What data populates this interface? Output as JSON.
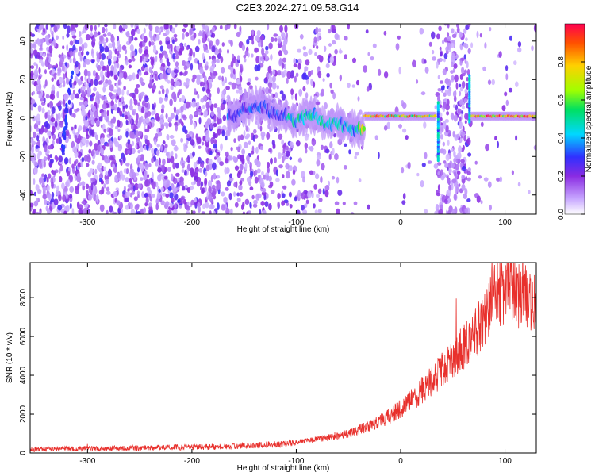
{
  "title": "C2E3.2024.271.09.58.G14",
  "colors": {
    "snr_line": "#e8302c",
    "axes": "#000000",
    "background": "#ffffff"
  },
  "chart_data": [
    {
      "type": "heatmap",
      "name": "spectrogram",
      "xlabel": "Height of straight line (km)",
      "ylabel": "Frequency (Hz)",
      "xlim": [
        -355,
        130
      ],
      "ylim": [
        -50,
        49
      ],
      "x_ticks": [
        -300,
        -200,
        -100,
        0,
        100
      ],
      "y_ticks": [
        -40,
        -20,
        0,
        20,
        40
      ],
      "colorbar": {
        "label": "Normalized spectral amplitude",
        "range": [
          0,
          1
        ],
        "ticks": [
          0.0,
          0.2,
          0.4,
          0.6,
          0.8
        ],
        "colormap": [
          "#ffffff",
          "#c8a8ff",
          "#8a2be2",
          "#3030ff",
          "#00d8ff",
          "#00e060",
          "#a0ff00",
          "#ffd000",
          "#ff5000",
          "#ff0050"
        ]
      },
      "features": {
        "signal_band_center_hz": 1,
        "noise_region_km": [
          -355,
          -110
        ],
        "noise_gap_km": [
          35,
          66
        ],
        "signal_start_km": -165
      }
    },
    {
      "type": "line",
      "name": "snr",
      "xlabel": "Height of straight line (km)",
      "ylabel": "SNR (10 * v/v)",
      "xlim": [
        -355,
        130
      ],
      "ylim": [
        0,
        9800
      ],
      "x_ticks": [
        -300,
        -200,
        -100,
        0,
        100
      ],
      "y_ticks": [
        0,
        2000,
        4000,
        6000,
        8000
      ],
      "envelope": {
        "x": [
          -355,
          -300,
          -250,
          -200,
          -150,
          -110,
          -80,
          -50,
          -30,
          -10,
          0,
          10,
          20,
          40,
          60,
          75,
          85,
          90,
          95,
          105,
          115,
          130
        ],
        "y": [
          200,
          230,
          260,
          300,
          360,
          480,
          700,
          1000,
          1400,
          1900,
          2300,
          2700,
          3200,
          4300,
          5400,
          6400,
          7600,
          8800,
          8300,
          8500,
          8100,
          7600
        ]
      }
    }
  ]
}
